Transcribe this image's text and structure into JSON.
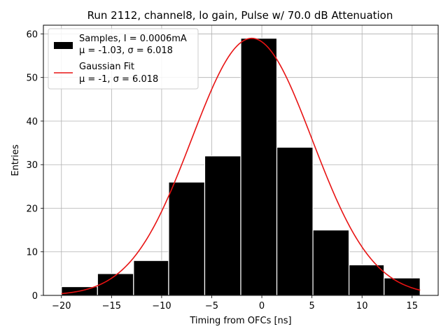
{
  "chart_data": {
    "type": "bar",
    "title": "Run 2112, channel8, lo gain, Pulse w/ 70.0 dB Attenuation",
    "xlabel": "Timing from OFCs [ns]",
    "ylabel": "Entries",
    "xlim": [
      -21.8,
      17.6
    ],
    "ylim": [
      0,
      62
    ],
    "xticks": [
      -20,
      -15,
      -10,
      -5,
      0,
      5,
      10,
      15
    ],
    "xtick_labels": [
      "−20",
      "−15",
      "−10",
      "−5",
      "0",
      "5",
      "10",
      "15"
    ],
    "yticks": [
      0,
      10,
      20,
      30,
      40,
      50,
      60
    ],
    "ytick_labels": [
      "0",
      "10",
      "20",
      "30",
      "40",
      "50",
      "60"
    ],
    "grid": true,
    "legend_position": "top-left",
    "bins": [
      {
        "x0": -20.0,
        "x1": -16.4,
        "count": 2
      },
      {
        "x0": -16.4,
        "x1": -12.8,
        "count": 5
      },
      {
        "x0": -12.8,
        "x1": -9.3,
        "count": 8
      },
      {
        "x0": -9.3,
        "x1": -5.7,
        "count": 26
      },
      {
        "x0": -5.7,
        "x1": -2.1,
        "count": 32
      },
      {
        "x0": -2.1,
        "x1": 1.5,
        "count": 59
      },
      {
        "x0": 1.5,
        "x1": 5.1,
        "count": 34
      },
      {
        "x0": 5.1,
        "x1": 8.7,
        "count": 15
      },
      {
        "x0": 8.7,
        "x1": 12.2,
        "count": 7
      },
      {
        "x0": 12.2,
        "x1": 15.8,
        "count": 4
      }
    ],
    "fit": {
      "type": "gaussian",
      "mu": -1.0,
      "sigma": 6.018,
      "amplitude": 59,
      "x_range": [
        -20.0,
        15.8
      ],
      "color": "#e81313"
    },
    "bar_color": "#000000",
    "bar_edge_color": "#ffffff",
    "legend": [
      {
        "label_line1": "Samples, I = 0.0006mA",
        "label_line2": "μ = -1.03, σ = 6.018",
        "kind": "patch",
        "color": "#000000"
      },
      {
        "label_line1": "Gaussian Fit",
        "label_line2": "μ = -1, σ = 6.018",
        "kind": "line",
        "color": "#e81313"
      }
    ]
  }
}
